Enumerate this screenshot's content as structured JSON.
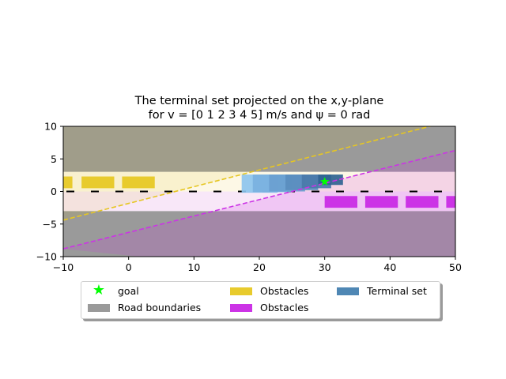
{
  "chart_data": {
    "type": "area",
    "title_line1": "The terminal set projected on the x,y-plane",
    "title_line2": "for v = [0 1 2 3 4 5] m/s and ψ = 0 rad",
    "xlim": [
      -10,
      50
    ],
    "ylim": [
      -10,
      10
    ],
    "x_ticks": [
      "−10",
      "0",
      "10",
      "20",
      "30",
      "40",
      "50"
    ],
    "y_ticks": [
      "10",
      "5",
      "0",
      "−5",
      "−10"
    ],
    "x_tick_values": [
      -10,
      0,
      10,
      20,
      30,
      40,
      50
    ],
    "y_tick_values": [
      10,
      5,
      0,
      -5,
      -10
    ],
    "grid": false,
    "road": {
      "lane_upper": [
        0,
        3
      ],
      "lane_lower": [
        -3,
        0
      ]
    },
    "road_boundaries": [
      {
        "y0": 3,
        "y1": 10
      },
      {
        "y0": -10,
        "y1": -3
      }
    ],
    "obstacles_yellow": [
      {
        "x0": -10,
        "x1": -8.6,
        "y0": 0.5,
        "y1": 2.3
      },
      {
        "x0": -7.2,
        "x1": -2.2,
        "y0": 0.5,
        "y1": 2.3
      },
      {
        "x0": -1.0,
        "x1": 4.0,
        "y0": 0.5,
        "y1": 2.3
      }
    ],
    "obstacles_magenta": [
      {
        "x0": 30.0,
        "x1": 35.0,
        "y0": -2.5,
        "y1": -0.7
      },
      {
        "x0": 36.2,
        "x1": 41.2,
        "y0": -2.5,
        "y1": -0.7
      },
      {
        "x0": 42.4,
        "x1": 47.4,
        "y0": -2.5,
        "y1": -0.7
      },
      {
        "x0": 48.6,
        "x1": 50,
        "y0": -2.5,
        "y1": -0.7
      }
    ],
    "terminal_set": [
      {
        "x0": 17.3,
        "x1": 22.8,
        "y0": -0.2,
        "y1": 2.6
      },
      {
        "x0": 19.0,
        "x1": 25.0,
        "y0": -0.1,
        "y1": 2.6
      },
      {
        "x0": 21.5,
        "x1": 27.0,
        "y0": 0.0,
        "y1": 2.6
      },
      {
        "x0": 24.0,
        "x1": 29.0,
        "y0": 0.2,
        "y1": 2.6
      },
      {
        "x0": 26.5,
        "x1": 31.0,
        "y0": 0.5,
        "y1": 2.6
      },
      {
        "x0": 29.0,
        "x1": 32.8,
        "y0": 1.0,
        "y1": 2.6
      }
    ],
    "terminal_colors": [
      "#8dc4ee",
      "#7ab1e0",
      "#6a9fd0",
      "#5a8dbe",
      "#4a7aaa",
      "#2f6391"
    ],
    "goal": {
      "x": 30,
      "y": 1.5
    },
    "yellow_line": {
      "x": [
        -10,
        50
      ],
      "y": [
        -4.4,
        11.0
      ]
    },
    "magenta_line": {
      "x": [
        -10,
        50
      ],
      "y": [
        -8.8,
        6.3
      ]
    },
    "colors": {
      "road_boundary": "#9a9a9a",
      "lane_upper": "#fdf8e6",
      "lane_lower": "#f8e7f8",
      "yellow_obstacle": "#e8cb2d",
      "magenta_obstacle": "#cc33e6",
      "yellow_line": "#e6c622",
      "magenta_line": "#cc33e6",
      "goal": "#00ff00",
      "terminal_legend": "#4f87b4"
    },
    "legend": {
      "placement": "below",
      "items": [
        {
          "label": "goal",
          "marker": "star",
          "color": "#00ff00"
        },
        {
          "label": "Road boundaries",
          "marker": "patch",
          "color": "#9a9a9a"
        },
        {
          "label": "Obstacles",
          "marker": "patch",
          "color": "#e8cb2d"
        },
        {
          "label": "Obstacles",
          "marker": "patch",
          "color": "#cc33e6"
        },
        {
          "label": "Terminal set",
          "marker": "patch",
          "color": "#4f87b4"
        }
      ]
    }
  }
}
